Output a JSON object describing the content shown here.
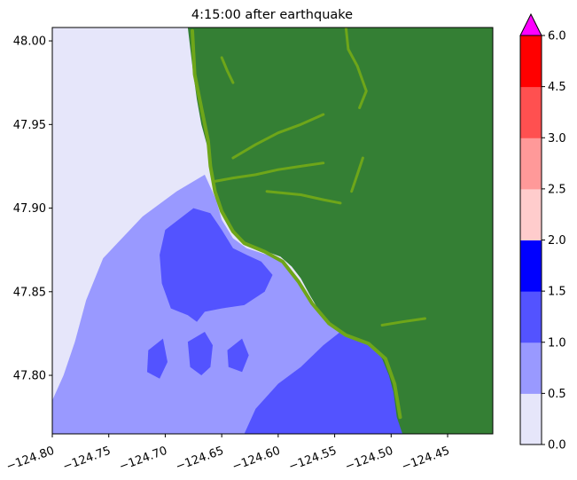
{
  "chart_data": {
    "type": "heatmap",
    "title": "4:15:00 after earthquake",
    "xlabel": "",
    "ylabel": "",
    "x_ticks": [
      -124.8,
      -124.75,
      -124.7,
      -124.65,
      -124.6,
      -124.55,
      -124.5,
      -124.45
    ],
    "x_tick_labels": [
      "−124.80",
      "−124.75",
      "−124.70",
      "−124.65",
      "−124.60",
      "−124.55",
      "−124.50",
      "−124.45"
    ],
    "y_ticks": [
      47.8,
      47.85,
      47.9,
      47.95,
      48.0
    ],
    "y_tick_labels": [
      "47.80",
      "47.85",
      "47.90",
      "47.95",
      "48.00"
    ],
    "xlim": [
      -124.8,
      -124.41
    ],
    "ylim": [
      47.765,
      48.008
    ],
    "legend": "colorbar-right",
    "colorbar": {
      "bounds": [
        0.0,
        0.5,
        1.0,
        1.5,
        2.0,
        2.5,
        3.0,
        4.5,
        6.0
      ],
      "tick_labels": [
        "0.0",
        "0.5",
        "1.0",
        "1.5",
        "2.0",
        "2.5",
        "3.0",
        "4.5",
        "6.0"
      ],
      "colors": [
        "#e6e6fa",
        "#9999ff",
        "#5353ff",
        "#0000ff",
        "#ffcccc",
        "#ff9999",
        "#ff5050",
        "#ff0000"
      ],
      "extend_color": "#ff00ff",
      "extend": "max"
    },
    "land_color": "#347f34",
    "flooded_land_color": "#6ea619",
    "regions": [
      {
        "name": "offshore",
        "color": "#e6e6fa",
        "poly": [
          [
            -124.8,
            48.008
          ],
          [
            -124.685,
            48.008
          ],
          [
            -124.68,
            47.98
          ],
          [
            -124.672,
            47.955
          ],
          [
            -124.665,
            47.935
          ],
          [
            -124.665,
            47.92
          ],
          [
            -124.69,
            47.91
          ],
          [
            -124.72,
            47.895
          ],
          [
            -124.755,
            47.87
          ],
          [
            -124.77,
            47.845
          ],
          [
            -124.78,
            47.82
          ],
          [
            -124.79,
            47.8
          ],
          [
            -124.8,
            47.785
          ]
        ]
      },
      {
        "name": "shelf-0.5-1.0",
        "color": "#9999ff",
        "poly": [
          [
            -124.8,
            47.785
          ],
          [
            -124.79,
            47.8
          ],
          [
            -124.78,
            47.82
          ],
          [
            -124.77,
            47.845
          ],
          [
            -124.755,
            47.87
          ],
          [
            -124.72,
            47.895
          ],
          [
            -124.69,
            47.91
          ],
          [
            -124.665,
            47.92
          ],
          [
            -124.655,
            47.905
          ],
          [
            -124.65,
            47.893
          ],
          [
            -124.64,
            47.882
          ],
          [
            -124.628,
            47.876
          ],
          [
            -124.61,
            47.872
          ],
          [
            -124.595,
            47.868
          ],
          [
            -124.585,
            47.86
          ],
          [
            -124.578,
            47.85
          ],
          [
            -124.57,
            47.842
          ],
          [
            -124.56,
            47.837
          ],
          [
            -124.548,
            47.828
          ],
          [
            -124.52,
            47.822
          ],
          [
            -124.5,
            47.818
          ],
          [
            -124.492,
            47.81
          ],
          [
            -124.488,
            47.798
          ],
          [
            -124.484,
            47.785
          ],
          [
            -124.475,
            47.772
          ],
          [
            -124.47,
            47.765
          ],
          [
            -124.8,
            47.765
          ]
        ]
      },
      {
        "name": "nearshore-1.0-1.5-north",
        "color": "#5353ff",
        "poly": [
          [
            -124.7,
            47.887
          ],
          [
            -124.675,
            47.9
          ],
          [
            -124.66,
            47.897
          ],
          [
            -124.65,
            47.887
          ],
          [
            -124.64,
            47.876
          ],
          [
            -124.628,
            47.872
          ],
          [
            -124.615,
            47.868
          ],
          [
            -124.605,
            47.86
          ],
          [
            -124.612,
            47.85
          ],
          [
            -124.63,
            47.842
          ],
          [
            -124.65,
            47.84
          ],
          [
            -124.665,
            47.838
          ],
          [
            -124.672,
            47.832
          ],
          [
            -124.68,
            47.836
          ],
          [
            -124.695,
            47.84
          ],
          [
            -124.703,
            47.855
          ],
          [
            -124.705,
            47.872
          ]
        ]
      },
      {
        "name": "nearshore-1.0-1.5-south",
        "color": "#5353ff",
        "poly": [
          [
            -124.63,
            47.765
          ],
          [
            -124.62,
            47.78
          ],
          [
            -124.6,
            47.795
          ],
          [
            -124.58,
            47.805
          ],
          [
            -124.56,
            47.818
          ],
          [
            -124.545,
            47.826
          ],
          [
            -124.528,
            47.827
          ],
          [
            -124.515,
            47.82
          ],
          [
            -124.505,
            47.812
          ],
          [
            -124.498,
            47.8
          ],
          [
            -124.492,
            47.79
          ],
          [
            -124.488,
            47.778
          ],
          [
            -124.482,
            47.765
          ]
        ]
      },
      {
        "name": "pocket-1",
        "color": "#5353ff",
        "poly": [
          [
            -124.68,
            47.82
          ],
          [
            -124.665,
            47.826
          ],
          [
            -124.658,
            47.818
          ],
          [
            -124.66,
            47.805
          ],
          [
            -124.668,
            47.8
          ],
          [
            -124.678,
            47.805
          ]
        ]
      },
      {
        "name": "pocket-2",
        "color": "#5353ff",
        "poly": [
          [
            -124.645,
            47.815
          ],
          [
            -124.632,
            47.822
          ],
          [
            -124.626,
            47.812
          ],
          [
            -124.632,
            47.802
          ],
          [
            -124.644,
            47.805
          ]
        ]
      },
      {
        "name": "pocket-3",
        "color": "#5353ff",
        "poly": [
          [
            -124.715,
            47.815
          ],
          [
            -124.702,
            47.822
          ],
          [
            -124.698,
            47.808
          ],
          [
            -124.705,
            47.798
          ],
          [
            -124.716,
            47.802
          ]
        ]
      },
      {
        "name": "land",
        "color": "#347f34",
        "poly": [
          [
            -124.68,
            48.008
          ],
          [
            -124.41,
            48.008
          ],
          [
            -124.41,
            47.765
          ],
          [
            -124.49,
            47.765
          ],
          [
            -124.495,
            47.775
          ],
          [
            -124.498,
            47.79
          ],
          [
            -124.502,
            47.8
          ],
          [
            -124.508,
            47.81
          ],
          [
            -124.518,
            47.818
          ],
          [
            -124.53,
            47.822
          ],
          [
            -124.545,
            47.826
          ],
          [
            -124.555,
            47.832
          ],
          [
            -124.565,
            47.84
          ],
          [
            -124.572,
            47.848
          ],
          [
            -124.58,
            47.858
          ],
          [
            -124.588,
            47.865
          ],
          [
            -124.598,
            47.871
          ],
          [
            -124.61,
            47.874
          ],
          [
            -124.622,
            47.877
          ],
          [
            -124.632,
            47.88
          ],
          [
            -124.642,
            47.888
          ],
          [
            -124.65,
            47.898
          ],
          [
            -124.655,
            47.91
          ],
          [
            -124.66,
            47.922
          ],
          [
            -124.662,
            47.935
          ],
          [
            -124.668,
            47.95
          ],
          [
            -124.672,
            47.965
          ],
          [
            -124.676,
            47.985
          ]
        ]
      }
    ],
    "inundation_strips": [
      [
        [
          -124.676,
          48.006
        ],
        [
          -124.674,
          47.98
        ],
        [
          -124.668,
          47.96
        ],
        [
          -124.662,
          47.94
        ],
        [
          -124.66,
          47.925
        ],
        [
          -124.656,
          47.91
        ],
        [
          -124.65,
          47.898
        ],
        [
          -124.64,
          47.886
        ],
        [
          -124.63,
          47.879
        ],
        [
          -124.612,
          47.874
        ],
        [
          -124.596,
          47.868
        ],
        [
          -124.582,
          47.856
        ],
        [
          -124.57,
          47.843
        ],
        [
          -124.555,
          47.831
        ],
        [
          -124.54,
          47.824
        ],
        [
          -124.52,
          47.819
        ],
        [
          -124.505,
          47.81
        ],
        [
          -124.497,
          47.795
        ],
        [
          -124.492,
          47.775
        ]
      ],
      [
        [
          -124.656,
          47.916
        ],
        [
          -124.64,
          47.918
        ],
        [
          -124.62,
          47.92
        ],
        [
          -124.6,
          47.923
        ],
        [
          -124.58,
          47.925
        ],
        [
          -124.56,
          47.927
        ]
      ],
      [
        [
          -124.64,
          47.93
        ],
        [
          -124.62,
          47.938
        ],
        [
          -124.6,
          47.945
        ],
        [
          -124.58,
          47.95
        ],
        [
          -124.56,
          47.956
        ]
      ],
      [
        [
          -124.61,
          47.91
        ],
        [
          -124.58,
          47.908
        ],
        [
          -124.56,
          47.905
        ],
        [
          -124.545,
          47.903
        ]
      ],
      [
        [
          -124.535,
          47.91
        ],
        [
          -124.53,
          47.92
        ],
        [
          -124.525,
          47.93
        ]
      ],
      [
        [
          -124.54,
          48.008
        ],
        [
          -124.538,
          47.995
        ],
        [
          -124.53,
          47.985
        ],
        [
          -124.522,
          47.97
        ],
        [
          -124.528,
          47.96
        ]
      ],
      [
        [
          -124.65,
          47.99
        ],
        [
          -124.645,
          47.982
        ],
        [
          -124.64,
          47.975
        ]
      ],
      [
        [
          -124.508,
          47.83
        ],
        [
          -124.49,
          47.832
        ],
        [
          -124.47,
          47.834
        ]
      ]
    ]
  }
}
